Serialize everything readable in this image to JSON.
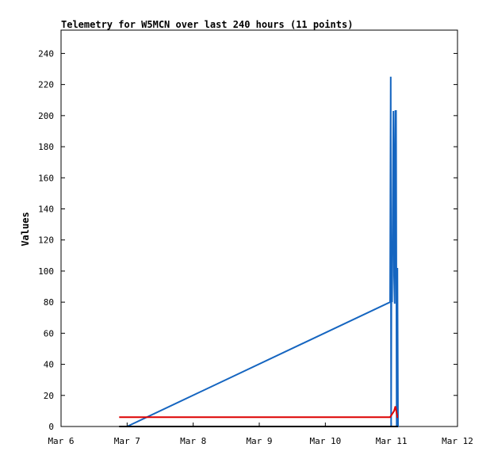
{
  "chart_data": {
    "type": "line",
    "title": "Telemetry for W5MCN over last 240 hours (11 points)",
    "xlabel": "",
    "ylabel": "Values",
    "x_ticks": [
      "Mar 6",
      "Mar 7",
      "Mar 8",
      "Mar 9",
      "Mar 10",
      "Mar 11",
      "Mar 12"
    ],
    "xlim": [
      0,
      6
    ],
    "y_ticks": [
      0,
      20,
      40,
      60,
      80,
      100,
      120,
      140,
      160,
      180,
      200,
      220,
      240
    ],
    "ylim": [
      0,
      255
    ],
    "grid": false,
    "legend": "none",
    "series": [
      {
        "color": "#1565c0",
        "x": [
          1.0,
          4.98,
          4.99,
          4.995,
          5.0,
          5.01,
          5.03,
          5.035,
          5.04,
          5.05,
          5.06,
          5.07,
          5.08,
          5.09,
          5.1,
          5.11
        ],
        "y": [
          0,
          80,
          225,
          0,
          97,
          80,
          203,
          178,
          97,
          79,
          203,
          203,
          0,
          102,
          0,
          0
        ]
      },
      {
        "color": "#dd0000",
        "x": [
          0.88,
          4.98,
          5.04,
          5.06,
          5.09,
          5.1
        ],
        "y": [
          6,
          6,
          10,
          13,
          6,
          6
        ]
      },
      {
        "color": "#000000",
        "x": [
          0.88,
          5.1
        ],
        "y": [
          0,
          0
        ]
      }
    ]
  }
}
